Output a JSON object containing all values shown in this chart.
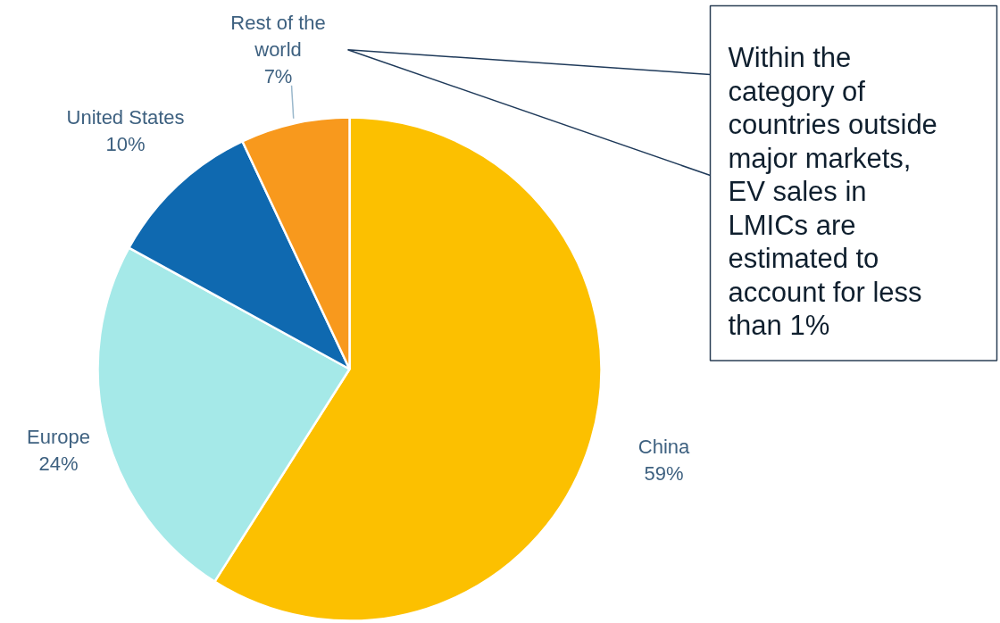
{
  "chart_data": {
    "type": "pie",
    "categories": [
      "China",
      "Europe",
      "United States",
      "Rest of the world"
    ],
    "values": [
      59,
      24,
      10,
      7
    ],
    "colors": [
      "#fcc000",
      "#a5e9e8",
      "#0f69b0",
      "#f8991d"
    ],
    "value_labels": [
      "59%",
      "24%",
      "10%",
      "7%"
    ],
    "annotations": [
      "Within the category of countries outside major markets, EV sales in LMICs are estimated to account for less than 1%"
    ]
  }
}
